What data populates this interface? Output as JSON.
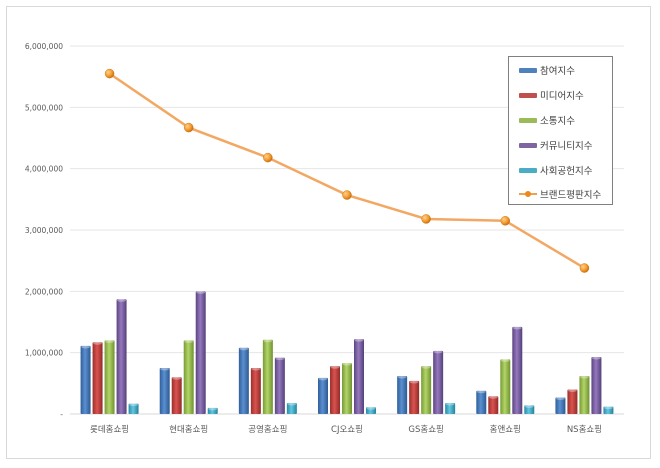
{
  "chart_data": {
    "type": "bar",
    "title": "",
    "xlabel": "",
    "ylabel": "",
    "ylim": [
      0,
      6000000
    ],
    "grid": true,
    "legend_position": "right-inside",
    "y_ticks": [
      "-",
      "1,000,000",
      "2,000,000",
      "3,000,000",
      "4,000,000",
      "5,000,000",
      "6,000,000"
    ],
    "categories": [
      "롯데홈쇼핑",
      "현대홈쇼핑",
      "공영홈쇼핑",
      "CJ오쇼핑",
      "GS홈쇼핑",
      "홈앤쇼핑",
      "NS홈쇼핑"
    ],
    "series": [
      {
        "name": "참여지수",
        "type": "bar",
        "color": "#4f81bd",
        "values": [
          1110000,
          750000,
          1080000,
          590000,
          620000,
          380000,
          270000
        ]
      },
      {
        "name": "미디어지수",
        "type": "bar",
        "color": "#c0504d",
        "values": [
          1170000,
          600000,
          750000,
          780000,
          540000,
          290000,
          400000
        ]
      },
      {
        "name": "소통지수",
        "type": "bar",
        "color": "#9bbb59",
        "values": [
          1200000,
          1200000,
          1210000,
          830000,
          780000,
          890000,
          620000
        ]
      },
      {
        "name": "커뮤니티지수",
        "type": "bar",
        "color": "#8064a2",
        "values": [
          1870000,
          2000000,
          920000,
          1220000,
          1030000,
          1420000,
          930000
        ]
      },
      {
        "name": "사회공헌지수",
        "type": "bar",
        "color": "#4bacc6",
        "values": [
          170000,
          100000,
          180000,
          110000,
          180000,
          140000,
          120000
        ]
      },
      {
        "name": "브랜드평판지수",
        "type": "line",
        "color": "#f79646",
        "values": [
          5550000,
          4670000,
          4180000,
          3570000,
          3180000,
          3150000,
          2380000
        ]
      }
    ]
  }
}
